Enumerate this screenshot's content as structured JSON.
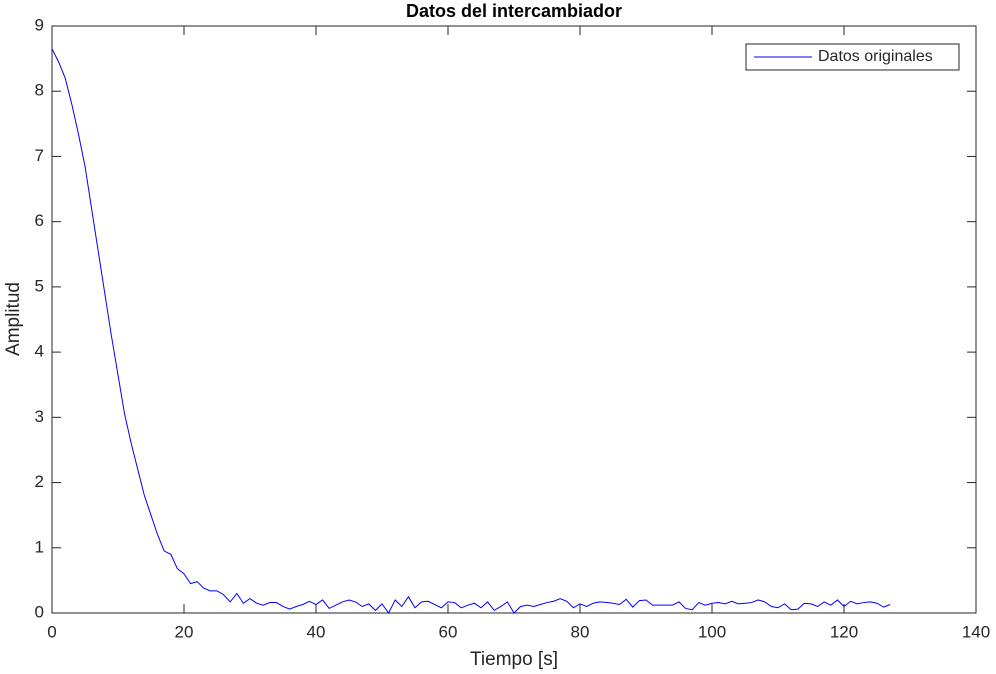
{
  "chart_data": {
    "type": "line",
    "title": "Datos del intercambiador",
    "xlabel": "Tiempo [s]",
    "ylabel": "Amplitud",
    "x": [
      0,
      1,
      2,
      3,
      4,
      5,
      6,
      7,
      8,
      9,
      10,
      11,
      12,
      13,
      14,
      15,
      16,
      17,
      18,
      19,
      20,
      21,
      22,
      23,
      24,
      25,
      26,
      27,
      28,
      29,
      30,
      31,
      32,
      33,
      34,
      35,
      36,
      37,
      38,
      39,
      40,
      41,
      42,
      43,
      44,
      45,
      46,
      47,
      48,
      49,
      50,
      51,
      52,
      53,
      54,
      55,
      56,
      57,
      58,
      59,
      60,
      61,
      62,
      63,
      64,
      65,
      66,
      67,
      68,
      69,
      70,
      71,
      72,
      73,
      74,
      75,
      76,
      77,
      78,
      79,
      80,
      81,
      82,
      83,
      84,
      85,
      86,
      87,
      88,
      89,
      90,
      91,
      92,
      93,
      94,
      95,
      96,
      97,
      98,
      99,
      100,
      101,
      102,
      103,
      104,
      105,
      106,
      107,
      108,
      109,
      110,
      111,
      112,
      113,
      114,
      115,
      116,
      117,
      118,
      119,
      120,
      121,
      122,
      123,
      124,
      125,
      126,
      127
    ],
    "series": [
      {
        "name": "Datos originales",
        "color": "#0000ff",
        "values": [
          8.65,
          8.45,
          8.2,
          7.8,
          7.35,
          6.85,
          6.2,
          5.55,
          4.9,
          4.25,
          3.65,
          3.05,
          2.6,
          2.2,
          1.8,
          1.5,
          1.2,
          0.95,
          0.9,
          0.68,
          0.6,
          0.45,
          0.48,
          0.38,
          0.34,
          0.34,
          0.28,
          0.17,
          0.3,
          0.15,
          0.22,
          0.15,
          0.12,
          0.16,
          0.16,
          0.1,
          0.06,
          0.1,
          0.13,
          0.18,
          0.13,
          0.2,
          0.07,
          0.12,
          0.17,
          0.2,
          0.17,
          0.1,
          0.14,
          0.04,
          0.14,
          0.0,
          0.2,
          0.1,
          0.25,
          0.08,
          0.17,
          0.18,
          0.13,
          0.08,
          0.17,
          0.16,
          0.08,
          0.12,
          0.15,
          0.08,
          0.17,
          0.04,
          0.1,
          0.17,
          0.0,
          0.1,
          0.12,
          0.1,
          0.13,
          0.16,
          0.18,
          0.22,
          0.18,
          0.08,
          0.14,
          0.1,
          0.15,
          0.17,
          0.16,
          0.15,
          0.13,
          0.21,
          0.09,
          0.19,
          0.2,
          0.12,
          0.12,
          0.12,
          0.12,
          0.17,
          0.07,
          0.05,
          0.16,
          0.12,
          0.15,
          0.16,
          0.14,
          0.18,
          0.14,
          0.15,
          0.16,
          0.2,
          0.17,
          0.1,
          0.08,
          0.14,
          0.05,
          0.06,
          0.15,
          0.14,
          0.1,
          0.17,
          0.12,
          0.2,
          0.1,
          0.18,
          0.14,
          0.16,
          0.17,
          0.15,
          0.09,
          0.13
        ]
      }
    ],
    "xlim": [
      0,
      140
    ],
    "xticks": [
      0,
      20,
      40,
      60,
      80,
      100,
      120,
      140
    ],
    "ylim": [
      0,
      9
    ],
    "yticks": [
      0,
      1,
      2,
      3,
      4,
      5,
      6,
      7,
      8,
      9
    ],
    "grid": false,
    "legend": "northeast"
  }
}
